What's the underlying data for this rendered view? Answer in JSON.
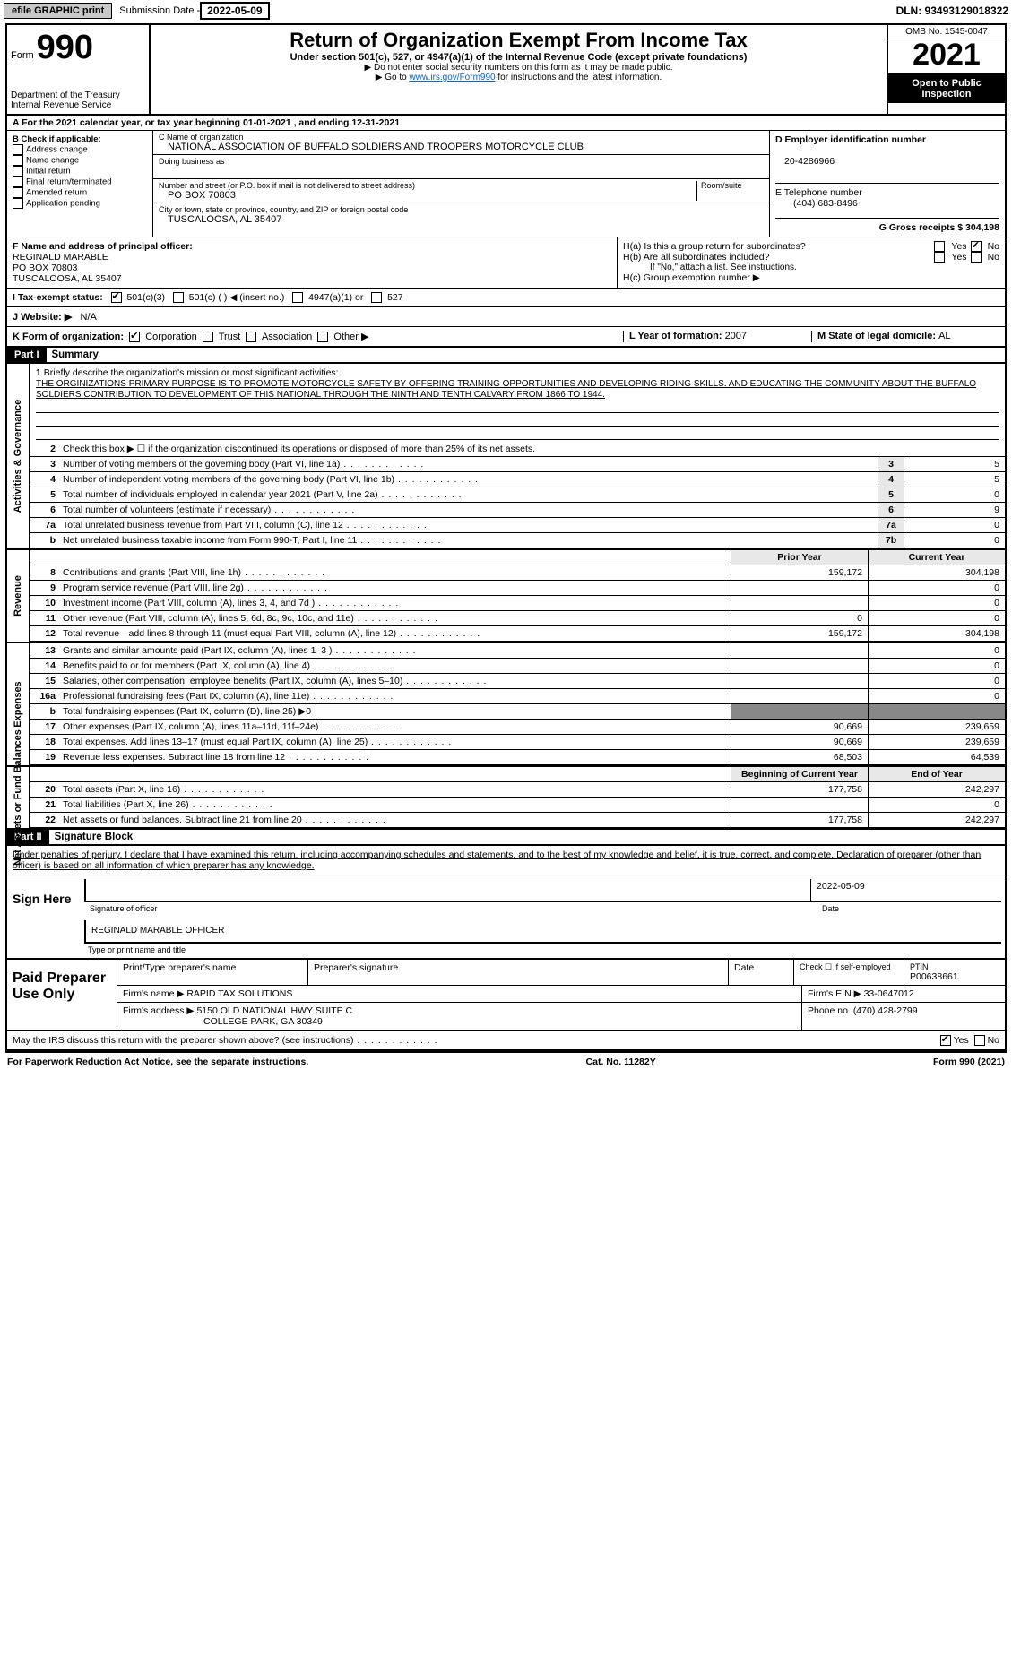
{
  "topbar": {
    "efile": "efile GRAPHIC print",
    "sub_label": "Submission Date - ",
    "sub_date": "2022-05-09",
    "dln": "DLN: 93493129018322"
  },
  "header": {
    "form_prefix": "Form",
    "form_no": "990",
    "dept": "Department of the Treasury\nInternal Revenue Service",
    "title": "Return of Organization Exempt From Income Tax",
    "sub": "Under section 501(c), 527, or 4947(a)(1) of the Internal Revenue Code (except private foundations)",
    "note1": "▶ Do not enter social security numbers on this form as it may be made public.",
    "note2_pre": "▶ Go to ",
    "note2_link": "www.irs.gov/Form990",
    "note2_post": " for instructions and the latest information.",
    "omb": "OMB No. 1545-0047",
    "year": "2021",
    "otp": "Open to Public Inspection"
  },
  "period": "A For the 2021 calendar year, or tax year beginning 01-01-2021    , and ending 12-31-2021",
  "check_b": {
    "title": "B Check if applicable:",
    "items": [
      "Address change",
      "Name change",
      "Initial return",
      "Final return/terminated",
      "Amended return",
      "Application pending"
    ]
  },
  "c": {
    "name_lbl": "C Name of organization",
    "name": "NATIONAL ASSOCIATION OF BUFFALO SOLDIERS AND TROOPERS MOTORCYCLE CLUB",
    "dba_lbl": "Doing business as",
    "addr_lbl": "Number and street (or P.O. box if mail is not delivered to street address)",
    "room_lbl": "Room/suite",
    "addr": "PO BOX 70803",
    "city_lbl": "City or town, state or province, country, and ZIP or foreign postal code",
    "city": "TUSCALOOSA, AL  35407"
  },
  "d": {
    "ein_lbl": "D Employer identification number",
    "ein": "20-4286966",
    "e_lbl": "E Telephone number",
    "e": "(404) 683-8496",
    "g_lbl": "G Gross receipts $ ",
    "g": "304,198"
  },
  "f": {
    "lbl": "F  Name and address of principal officer:",
    "name": "REGINALD MARABLE",
    "addr1": "PO BOX 70803",
    "addr2": "TUSCALOOSA, AL  35407"
  },
  "h": {
    "a": "H(a)  Is this a group return for subordinates?",
    "b": "H(b)  Are all subordinates included?",
    "b_note": "If \"No,\" attach a list. See instructions.",
    "c": "H(c)  Group exemption number ▶",
    "yes": "Yes",
    "no": "No"
  },
  "i": {
    "lbl": "I  Tax-exempt status:",
    "o1": "501(c)(3)",
    "o2": "501(c) (   ) ◀ (insert no.)",
    "o3": "4947(a)(1) or",
    "o4": "527"
  },
  "j": {
    "lbl": "J  Website: ▶",
    "val": "N/A"
  },
  "k": {
    "lbl": "K Form of organization:",
    "o1": "Corporation",
    "o2": "Trust",
    "o3": "Association",
    "o4": "Other ▶"
  },
  "l": {
    "lbl": "L Year of formation: ",
    "val": "2007"
  },
  "m": {
    "lbl": "M State of legal domicile: ",
    "val": "AL"
  },
  "part1": {
    "hdr": "Part I",
    "title": "Summary"
  },
  "summary": {
    "q1": "Briefly describe the organization's mission or most significant activities:",
    "mission": "THE ORGINIZATIONS PRIMARY PURPOSE IS TO PROMOTE MOTORCYCLE SAFETY BY OFFERING TRAINING OPPORTUNITIES AND DEVELOPING RIDING SKILLS. AND EDUCATING THE COMMUNITY ABOUT THE BUFFALO SOLDIERS CONTRIBUTION TO DEVELOPMENT OF THIS NATIONAL THROUGH THE NINTH AND TENTH CALVARY FROM 1866 TO 1944.",
    "q2": "Check this box ▶ ☐  if the organization discontinued its operations or disposed of more than 25% of its net assets.",
    "rows_gov": [
      {
        "n": "3",
        "t": "Number of voting members of the governing body (Part VI, line 1a)",
        "box": "3",
        "v": "5"
      },
      {
        "n": "4",
        "t": "Number of independent voting members of the governing body (Part VI, line 1b)",
        "box": "4",
        "v": "5"
      },
      {
        "n": "5",
        "t": "Total number of individuals employed in calendar year 2021 (Part V, line 2a)",
        "box": "5",
        "v": "0"
      },
      {
        "n": "6",
        "t": "Total number of volunteers (estimate if necessary)",
        "box": "6",
        "v": "9"
      },
      {
        "n": "7a",
        "t": "Total unrelated business revenue from Part VIII, column (C), line 12",
        "box": "7a",
        "v": "0"
      },
      {
        "n": "b",
        "t": "Net unrelated business taxable income from Form 990-T, Part I, line 11",
        "box": "7b",
        "v": "0"
      }
    ],
    "col_prior": "Prior Year",
    "col_curr": "Current Year",
    "rows_rev": [
      {
        "n": "8",
        "t": "Contributions and grants (Part VIII, line 1h)",
        "p": "159,172",
        "c": "304,198"
      },
      {
        "n": "9",
        "t": "Program service revenue (Part VIII, line 2g)",
        "p": "",
        "c": "0"
      },
      {
        "n": "10",
        "t": "Investment income (Part VIII, column (A), lines 3, 4, and 7d )",
        "p": "",
        "c": "0"
      },
      {
        "n": "11",
        "t": "Other revenue (Part VIII, column (A), lines 5, 6d, 8c, 9c, 10c, and 11e)",
        "p": "0",
        "c": "0"
      },
      {
        "n": "12",
        "t": "Total revenue—add lines 8 through 11 (must equal Part VIII, column (A), line 12)",
        "p": "159,172",
        "c": "304,198"
      }
    ],
    "rows_exp": [
      {
        "n": "13",
        "t": "Grants and similar amounts paid (Part IX, column (A), lines 1–3 )",
        "p": "",
        "c": "0"
      },
      {
        "n": "14",
        "t": "Benefits paid to or for members (Part IX, column (A), line 4)",
        "p": "",
        "c": "0"
      },
      {
        "n": "15",
        "t": "Salaries, other compensation, employee benefits (Part IX, column (A), lines 5–10)",
        "p": "",
        "c": "0"
      },
      {
        "n": "16a",
        "t": "Professional fundraising fees (Part IX, column (A), line 11e)",
        "p": "",
        "c": "0"
      },
      {
        "n": "b",
        "t": "Total fundraising expenses (Part IX, column (D), line 25) ▶0",
        "p": null,
        "c": null
      },
      {
        "n": "17",
        "t": "Other expenses (Part IX, column (A), lines 11a–11d, 11f–24e)",
        "p": "90,669",
        "c": "239,659"
      },
      {
        "n": "18",
        "t": "Total expenses. Add lines 13–17 (must equal Part IX, column (A), line 25)",
        "p": "90,669",
        "c": "239,659"
      },
      {
        "n": "19",
        "t": "Revenue less expenses. Subtract line 18 from line 12",
        "p": "68,503",
        "c": "64,539"
      }
    ],
    "col_beg": "Beginning of Current Year",
    "col_end": "End of Year",
    "rows_net": [
      {
        "n": "20",
        "t": "Total assets (Part X, line 16)",
        "p": "177,758",
        "c": "242,297"
      },
      {
        "n": "21",
        "t": "Total liabilities (Part X, line 26)",
        "p": "",
        "c": "0"
      },
      {
        "n": "22",
        "t": "Net assets or fund balances. Subtract line 21 from line 20",
        "p": "177,758",
        "c": "242,297"
      }
    ],
    "vtabs": {
      "gov": "Activities & Governance",
      "rev": "Revenue",
      "exp": "Expenses",
      "net": "Net Assets or Fund Balances"
    }
  },
  "part2": {
    "hdr": "Part II",
    "title": "Signature Block"
  },
  "sig": {
    "decl": "Under penalties of perjury, I declare that I have examined this return, including accompanying schedules and statements, and to the best of my knowledge and belief, it is true, correct, and complete. Declaration of preparer (other than officer) is based on all information of which preparer has any knowledge.",
    "sign_here": "Sign Here",
    "sig_lbl": "Signature of officer",
    "date_lbl": "Date",
    "date": "2022-05-09",
    "name": "REGINALD MARABLE  OFFICER",
    "name_lbl": "Type or print name and title"
  },
  "prep": {
    "title": "Paid Preparer Use Only",
    "r1": {
      "c1": "Print/Type preparer's name",
      "c2": "Preparer's signature",
      "c3": "Date",
      "c4": "Check ☐ if self-employed",
      "c5": "PTIN",
      "ptin": "P00638661"
    },
    "r2": {
      "lbl": "Firm's name   ▶",
      "val": "RAPID TAX SOLUTIONS",
      "ein_lbl": "Firm's EIN ▶",
      "ein": "33-0647012"
    },
    "r3": {
      "lbl": "Firm's address ▶",
      "val1": "5150 OLD NATIONAL HWY SUITE C",
      "val2": "COLLEGE PARK, GA  30349",
      "ph_lbl": "Phone no.",
      "ph": "(470) 428-2799"
    },
    "discuss": "May the IRS discuss this return with the preparer shown above? (see instructions)",
    "yes": "Yes",
    "no": "No"
  },
  "footer": {
    "l": "For Paperwork Reduction Act Notice, see the separate instructions.",
    "m": "Cat. No. 11282Y",
    "r": "Form 990 (2021)"
  }
}
